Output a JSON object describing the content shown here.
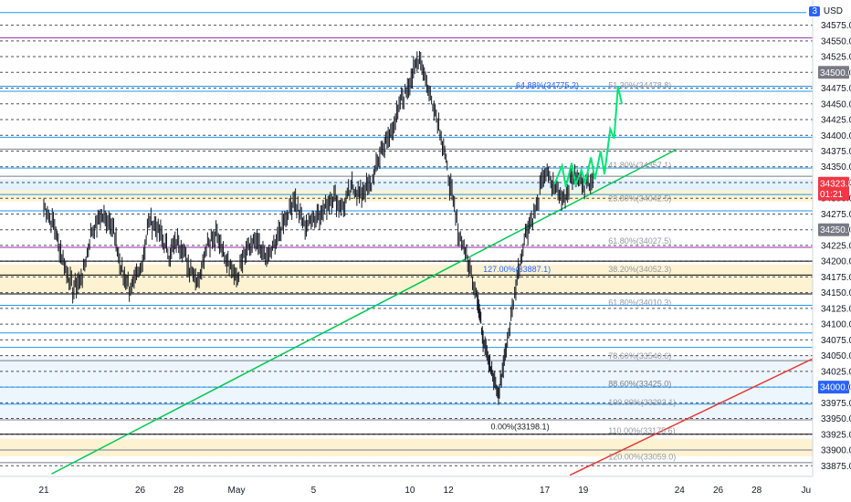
{
  "currency_label": "USD",
  "currency_prefix": "3",
  "chart_data": {
    "type": "candlestick",
    "title": "",
    "ylim": [
      33858,
      34615
    ],
    "y_ticks": [
      33875,
      33900,
      33925,
      33950,
      33975,
      34000,
      34025,
      34050,
      34075,
      34100,
      34125,
      34150,
      34175,
      34200,
      34225,
      34250,
      34275,
      34300,
      34325,
      34350,
      34375,
      34400,
      34425,
      34450,
      34475,
      34500,
      34525,
      34550,
      34575
    ],
    "y_tick_labels": [
      "33875.0",
      "33900.0",
      "33925.0",
      "33950.0",
      "33975.0",
      "34000.0",
      "34025.0",
      "34050.0",
      "34075.0",
      "34100.0",
      "34125.0",
      "34150.0",
      "34175.0",
      "34200.0",
      "34225.0",
      "34250.0",
      "34275.0",
      "34300.0",
      "34325.0",
      "34350.0",
      "34375.0",
      "34400.0",
      "34425.0",
      "34450.0",
      "34475.0",
      "34500.0",
      "34525.0",
      "34550.0",
      "34575.0"
    ],
    "x_ticks": [
      {
        "label": "21",
        "day": 0
      },
      {
        "label": "26",
        "day": 5
      },
      {
        "label": "28",
        "day": 7
      },
      {
        "label": "May",
        "day": 10
      },
      {
        "label": "5",
        "day": 14
      },
      {
        "label": "10",
        "day": 19
      },
      {
        "label": "12",
        "day": 21
      },
      {
        "label": "17",
        "day": 26
      },
      {
        "label": "19",
        "day": 28
      },
      {
        "label": "24",
        "day": 33
      },
      {
        "label": "26",
        "day": 35
      },
      {
        "label": "28",
        "day": 37
      },
      {
        "label": "Ju",
        "day": 40
      }
    ],
    "last_price": {
      "value": 34323.8,
      "label": "34323.8",
      "countdown": "01:21",
      "color": "#f23645"
    },
    "price_badges": [
      {
        "value": 34500,
        "label": "34500.0",
        "color": "#787b86"
      },
      {
        "value": 34250,
        "label": "34250.0",
        "color": "#787b86"
      },
      {
        "value": 34000,
        "label": "34000.0",
        "color": "#2962ff"
      }
    ],
    "horizontal_levels": [
      {
        "value": 34595,
        "color": "#2196f3",
        "style": "solid"
      },
      {
        "value": 34555,
        "color": "#9c27b0",
        "style": "solid"
      },
      {
        "value": 34478,
        "color": "#2196f3",
        "style": "solid"
      },
      {
        "value": 34470,
        "color": "#2196f3",
        "style": "solid"
      },
      {
        "value": 34397,
        "color": "#2196f3",
        "style": "solid"
      },
      {
        "value": 34378,
        "color": "#787b86",
        "style": "solid"
      },
      {
        "value": 34348,
        "color": "#2196f3",
        "style": "solid"
      },
      {
        "value": 34335,
        "color": "#787b86",
        "style": "solid"
      },
      {
        "value": 34306,
        "color": "#2196f3",
        "style": "solid"
      },
      {
        "value": 34280,
        "color": "#2196f3",
        "style": "solid"
      },
      {
        "value": 34222,
        "color": "#9c27b0",
        "style": "solid"
      },
      {
        "value": 34200,
        "color": "#000000",
        "style": "solid"
      },
      {
        "value": 34178,
        "color": "#000000",
        "style": "solid"
      },
      {
        "value": 34148,
        "color": "#000000",
        "style": "solid"
      },
      {
        "value": 34130,
        "color": "#2196f3",
        "style": "solid"
      },
      {
        "value": 34086,
        "color": "#2196f3",
        "style": "solid"
      },
      {
        "value": 34063,
        "color": "#2196f3",
        "style": "solid"
      },
      {
        "value": 34042,
        "color": "#787b86",
        "style": "solid"
      },
      {
        "value": 34000,
        "color": "#2196f3",
        "style": "solid"
      },
      {
        "value": 33973,
        "color": "#2196f3",
        "style": "solid"
      },
      {
        "value": 33948,
        "color": "#787b86",
        "style": "solid"
      },
      {
        "value": 33925,
        "color": "#000000",
        "style": "solid"
      },
      {
        "value": 33900,
        "color": "#787b86",
        "style": "solid"
      },
      {
        "value": 33880,
        "color": "#787b86",
        "style": "solid"
      }
    ],
    "zones": [
      {
        "from": 34295,
        "to": 34315,
        "color": "#fdf3d3"
      },
      {
        "from": 34313,
        "to": 34330,
        "color": "#e3f2fd"
      },
      {
        "from": 34150,
        "to": 34195,
        "color": "#fdf3d3"
      },
      {
        "from": 33890,
        "to": 33918,
        "color": "#fdf3d3"
      },
      {
        "from": 33950,
        "to": 34050,
        "color": "#eef6fd"
      }
    ],
    "fib_labels": [
      {
        "text": "64.88%(34775.2)",
        "value": 34472,
        "day": 24.5,
        "color": "#2962ff"
      },
      {
        "text": "51.30%(34478.8)",
        "value": 34472,
        "day": 29.3,
        "color": "#9598a1"
      },
      {
        "text": "41.80%(34357.1)",
        "value": 34345,
        "day": 29.3,
        "color": "#9598a1"
      },
      {
        "text": "23.80%(34042.5)",
        "value": 34292,
        "day": 29.3,
        "color": "#9598a1"
      },
      {
        "text": "61.80%(34027.5)",
        "value": 34225,
        "day": 29.3,
        "color": "#9598a1"
      },
      {
        "text": "127.00%(33887.1)",
        "value": 34180,
        "day": 22.8,
        "color": "#2962ff"
      },
      {
        "text": "38.20%(34052.3)",
        "value": 34180,
        "day": 29.3,
        "color": "#9598a1"
      },
      {
        "text": "61.80%(34010.3)",
        "value": 34127,
        "day": 29.3,
        "color": "#9598a1"
      },
      {
        "text": "78.60%(33540.6)",
        "value": 34042,
        "day": 29.3,
        "color": "#9598a1"
      },
      {
        "text": "88.60%(33425.0)",
        "value": 33998,
        "day": 29.3,
        "color": "#787b86"
      },
      {
        "text": "100.00%(33292.1)",
        "value": 33968,
        "day": 29.3,
        "color": "#9598a1"
      },
      {
        "text": "0.00%(33198.1)",
        "value": 33930,
        "day": 23.2,
        "color": "#131722"
      },
      {
        "text": "110.00%(33175.6)",
        "value": 33923,
        "day": 29.3,
        "color": "#9598a1"
      },
      {
        "text": "120.00%(33059.0)",
        "value": 33882,
        "day": 29.3,
        "color": "#9598a1"
      }
    ],
    "trendlines": [
      {
        "from": [
          0.4,
          33862
        ],
        "to": [
          32.8,
          34377
        ],
        "color": "#00c853"
      },
      {
        "from": [
          27.3,
          33860
        ],
        "to": [
          41.2,
          34064
        ],
        "color": "#e53935"
      }
    ],
    "projection_path": [
      [
        26.5,
        34322
      ],
      [
        26.9,
        34352
      ],
      [
        27.1,
        34318
      ],
      [
        27.4,
        34356
      ],
      [
        27.6,
        34322
      ],
      [
        27.9,
        34345
      ],
      [
        28.1,
        34325
      ],
      [
        28.4,
        34365
      ],
      [
        28.6,
        34330
      ],
      [
        28.9,
        34375
      ],
      [
        29.1,
        34338
      ],
      [
        29.4,
        34410
      ],
      [
        29.6,
        34395
      ],
      [
        29.8,
        34478
      ],
      [
        30.0,
        34450
      ]
    ],
    "price_path": [
      [
        0.0,
        34290
      ],
      [
        0.5,
        34258
      ],
      [
        1.0,
        34200
      ],
      [
        1.5,
        34155
      ],
      [
        2.0,
        34175
      ],
      [
        2.5,
        34250
      ],
      [
        3.0,
        34272
      ],
      [
        3.5,
        34265
      ],
      [
        4.0,
        34188
      ],
      [
        4.5,
        34155
      ],
      [
        5.0,
        34185
      ],
      [
        5.5,
        34265
      ],
      [
        6.0,
        34250
      ],
      [
        6.5,
        34210
      ],
      [
        7.0,
        34232
      ],
      [
        7.5,
        34195
      ],
      [
        8.0,
        34168
      ],
      [
        8.5,
        34232
      ],
      [
        9.0,
        34240
      ],
      [
        9.5,
        34205
      ],
      [
        10.0,
        34172
      ],
      [
        10.5,
        34215
      ],
      [
        11.0,
        34232
      ],
      [
        11.5,
        34205
      ],
      [
        12.0,
        34225
      ],
      [
        12.5,
        34268
      ],
      [
        13.0,
        34300
      ],
      [
        13.5,
        34255
      ],
      [
        14.0,
        34270
      ],
      [
        14.5,
        34280
      ],
      [
        15.0,
        34302
      ],
      [
        15.5,
        34283
      ],
      [
        16.0,
        34318
      ],
      [
        16.5,
        34306
      ],
      [
        17.0,
        34322
      ],
      [
        17.5,
        34375
      ],
      [
        18.0,
        34400
      ],
      [
        18.5,
        34450
      ],
      [
        19.0,
        34485
      ],
      [
        19.5,
        34528
      ],
      [
        20.0,
        34470
      ],
      [
        20.5,
        34420
      ],
      [
        21.0,
        34335
      ],
      [
        21.5,
        34250
      ],
      [
        22.0,
        34200
      ],
      [
        22.5,
        34145
      ],
      [
        22.8,
        34080
      ],
      [
        23.2,
        34030
      ],
      [
        23.6,
        33985
      ],
      [
        24.0,
        34065
      ],
      [
        24.5,
        34160
      ],
      [
        25.0,
        34245
      ],
      [
        25.5,
        34278
      ],
      [
        26.0,
        34340
      ],
      [
        26.5,
        34318
      ],
      [
        27.0,
        34302
      ],
      [
        27.5,
        34335
      ],
      [
        28.0,
        34322
      ],
      [
        28.5,
        34330
      ]
    ]
  }
}
